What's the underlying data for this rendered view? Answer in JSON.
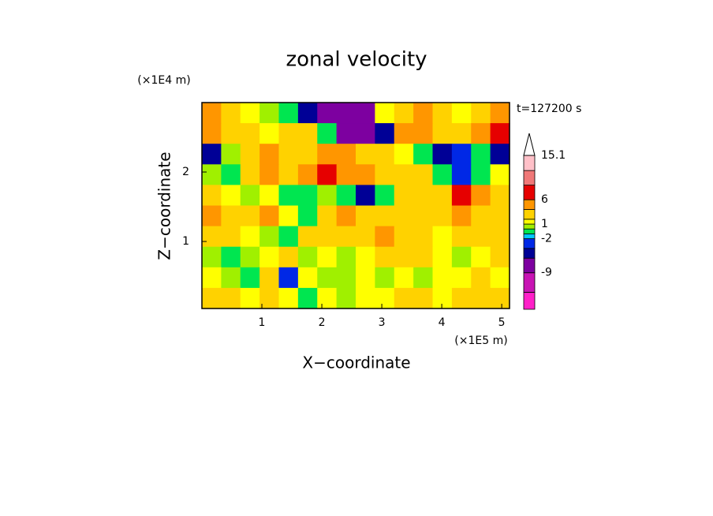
{
  "chart_data": {
    "type": "contour",
    "title": "zonal velocity",
    "x_label": "X−coordinate",
    "y_label": "Z−coordinate",
    "x_unit": "(×1E5 m)",
    "y_unit": "(×1E4 m)",
    "annotation": "t=127200 s",
    "xlim": [
      0,
      5.13
    ],
    "ylim": [
      0.035,
      3.0
    ],
    "xticks": [
      1,
      2,
      3,
      4,
      5
    ],
    "yticks": [
      1,
      2
    ],
    "field": {
      "values": [
        [
          4,
          2,
          1,
          0,
          -1,
          -6,
          -8,
          -8,
          -7,
          1,
          3,
          4,
          2,
          1,
          3,
          5
        ],
        [
          5,
          3,
          2,
          1,
          3,
          3,
          -1,
          -8,
          -9,
          -5,
          4,
          5,
          3,
          2,
          4,
          6
        ],
        [
          -6,
          0,
          3,
          4,
          3,
          3,
          4,
          5,
          3,
          2,
          1,
          -1,
          -5,
          -3,
          -1,
          -6
        ],
        [
          0,
          -1,
          2,
          4,
          3,
          4,
          6,
          5,
          4,
          3,
          2,
          3,
          -1,
          -3,
          -1,
          1
        ],
        [
          3,
          1,
          0,
          1,
          -1,
          -1,
          0,
          -1,
          -6,
          -1,
          2,
          3,
          3,
          6,
          5,
          2
        ],
        [
          5,
          2,
          3,
          4,
          1,
          -1,
          3,
          4,
          3,
          2,
          2,
          3,
          3,
          4,
          3,
          2
        ],
        [
          2,
          3,
          1,
          0,
          -1,
          2,
          2,
          3,
          3,
          4,
          3,
          2,
          1,
          2,
          3,
          2
        ],
        [
          0,
          -1,
          0,
          1,
          2,
          0,
          1,
          0,
          1,
          2,
          3,
          2,
          1,
          0,
          1,
          2
        ],
        [
          1,
          0,
          -1,
          2,
          -4,
          1,
          0,
          0,
          1,
          0,
          1,
          0,
          1,
          1,
          2,
          1
        ],
        [
          3,
          2,
          1,
          2,
          1,
          -1,
          1,
          0,
          1,
          1,
          2,
          3,
          1,
          3,
          2,
          3
        ]
      ]
    },
    "colorbar": {
      "bounds": [
        -16.5,
        -13,
        -9,
        -6,
        -4,
        -2,
        -1,
        0,
        1,
        2,
        4,
        6,
        9,
        12,
        15.1
      ],
      "colors": [
        "#ff20c8",
        "#c814b4",
        "#7d00a0",
        "#000096",
        "#0028e6",
        "#00c8ff",
        "#00e650",
        "#a0f000",
        "#ffff00",
        "#ffd200",
        "#ff9600",
        "#e60000",
        "#f07878",
        "#ffc0c8"
      ],
      "labels": [
        15.1,
        6,
        1,
        -2,
        -9
      ]
    }
  }
}
